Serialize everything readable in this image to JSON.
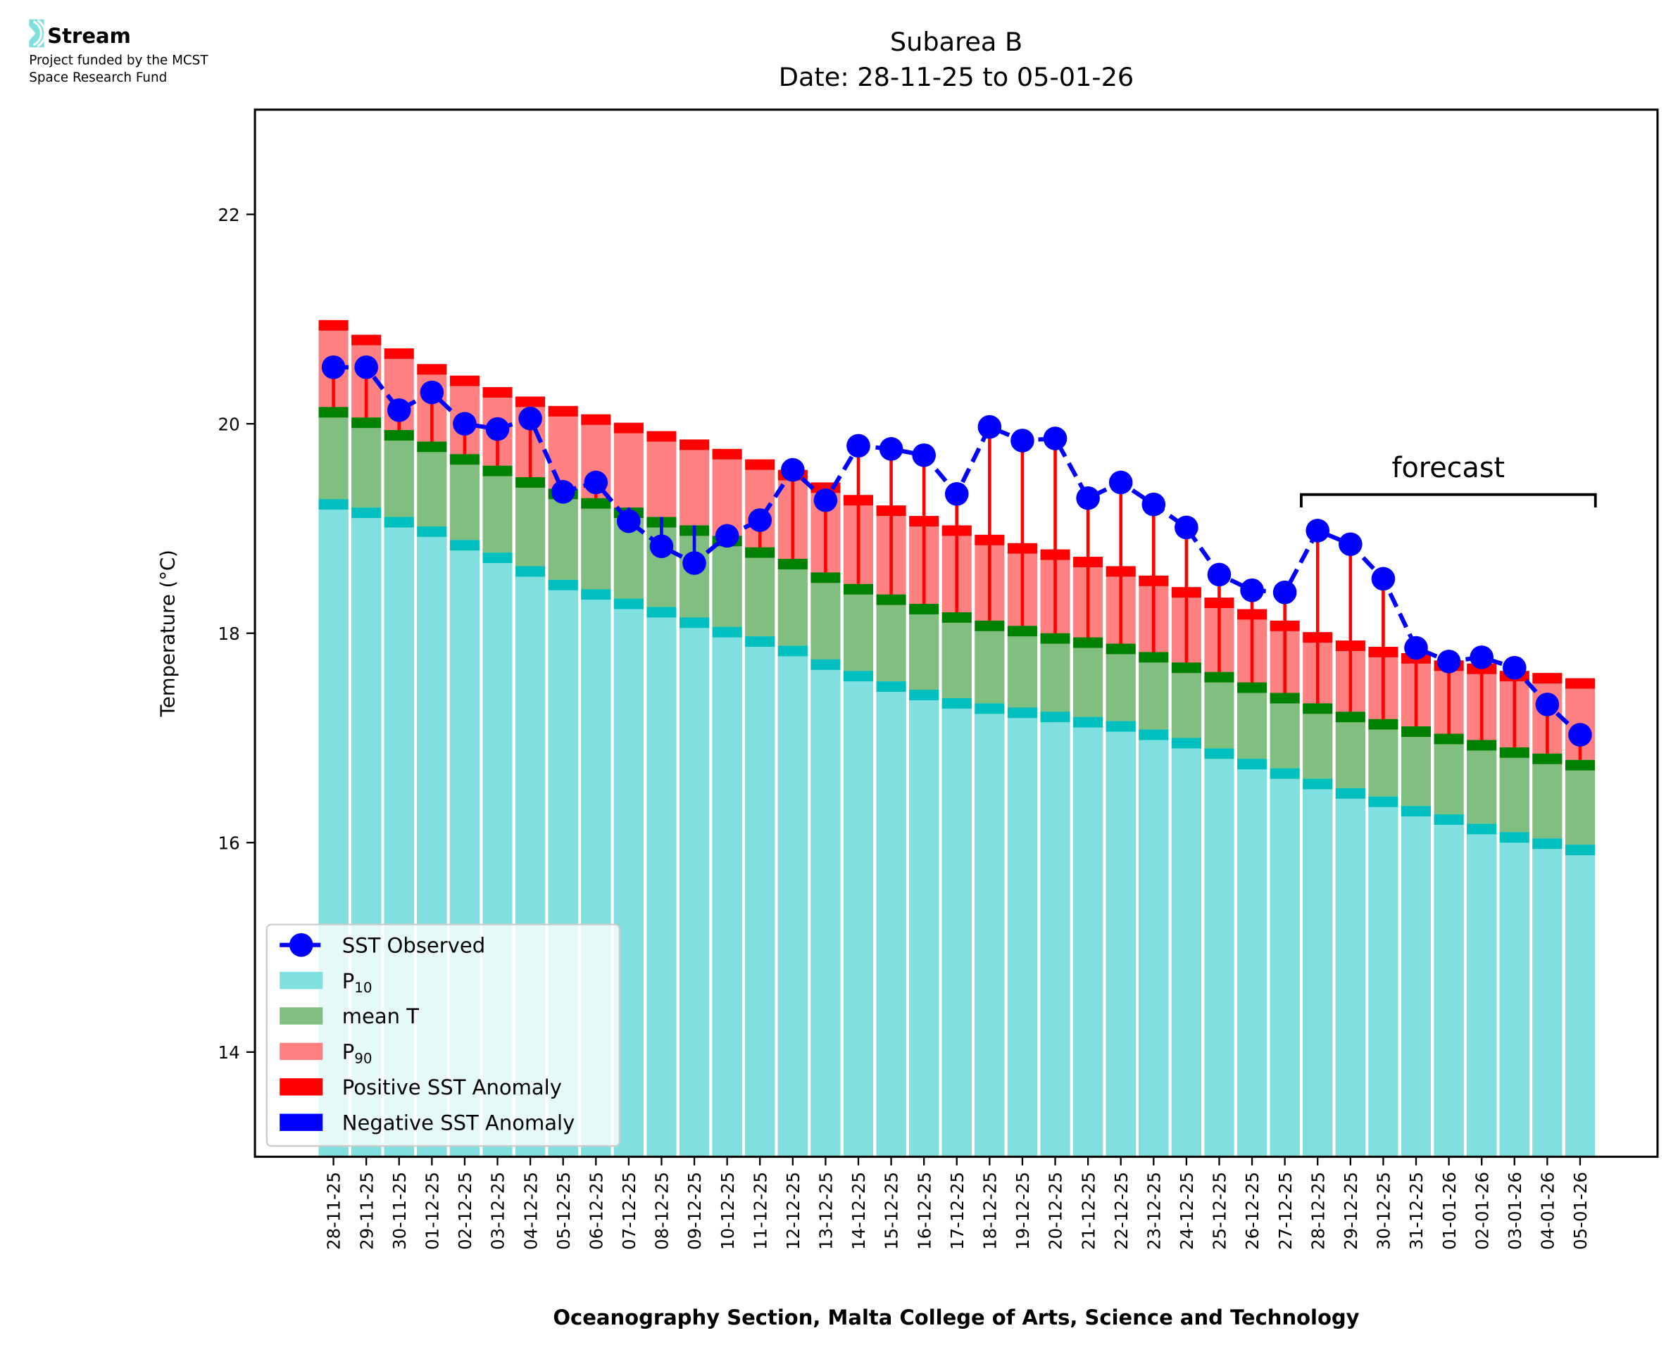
{
  "logo": {
    "name": "Stream",
    "line1": "Project funded by the MCST",
    "line2": "Space Research Fund",
    "color": "#7fdfdf"
  },
  "chart_data": {
    "type": "bar",
    "title": "Subarea B",
    "subtitle": "Date: 28-11-25 to 05-01-26",
    "xlabel": "Oceanography Section, Malta College of Arts, Science and Technology",
    "ylabel": "Temperature (°C)",
    "ylim": [
      13,
      23
    ],
    "yticks": [
      14,
      16,
      18,
      20,
      22
    ],
    "grid": false,
    "legend_position": "lower-left",
    "categories": [
      "28-11-25",
      "29-11-25",
      "30-11-25",
      "01-12-25",
      "02-12-25",
      "03-12-25",
      "04-12-25",
      "05-12-25",
      "06-12-25",
      "07-12-25",
      "08-12-25",
      "09-12-25",
      "10-12-25",
      "11-12-25",
      "12-12-25",
      "13-12-25",
      "14-12-25",
      "15-12-25",
      "16-12-25",
      "17-12-25",
      "18-12-25",
      "19-12-25",
      "20-12-25",
      "21-12-25",
      "22-12-25",
      "23-12-25",
      "24-12-25",
      "25-12-25",
      "26-12-25",
      "27-12-25",
      "28-12-25",
      "29-12-25",
      "30-12-25",
      "31-12-25",
      "01-01-26",
      "02-01-26",
      "03-01-26",
      "04-01-26",
      "05-01-26"
    ],
    "series": [
      {
        "name": "P10",
        "label_base": "P",
        "label_sub": "10",
        "type": "bar",
        "color": "#80dfdf",
        "edge_color": "#00bfbf",
        "values": [
          19.28,
          19.2,
          19.11,
          19.02,
          18.89,
          18.77,
          18.64,
          18.51,
          18.42,
          18.33,
          18.25,
          18.15,
          18.06,
          17.97,
          17.88,
          17.75,
          17.64,
          17.54,
          17.46,
          17.38,
          17.33,
          17.29,
          17.25,
          17.2,
          17.16,
          17.08,
          17.0,
          16.9,
          16.8,
          16.71,
          16.61,
          16.52,
          16.44,
          16.35,
          16.27,
          16.18,
          16.1,
          16.04,
          15.98
        ]
      },
      {
        "name": "mean T",
        "type": "bar",
        "color": "#80bf80",
        "edge_color": "#008000",
        "values": [
          20.16,
          20.06,
          19.94,
          19.83,
          19.71,
          19.6,
          19.49,
          19.38,
          19.29,
          19.2,
          19.11,
          19.03,
          18.93,
          18.82,
          18.71,
          18.58,
          18.47,
          18.37,
          18.28,
          18.2,
          18.12,
          18.07,
          18.0,
          17.96,
          17.9,
          17.82,
          17.72,
          17.63,
          17.53,
          17.43,
          17.33,
          17.25,
          17.18,
          17.11,
          17.04,
          16.98,
          16.91,
          16.85,
          16.79
        ]
      },
      {
        "name": "P90",
        "label_base": "P",
        "label_sub": "90",
        "type": "bar",
        "color": "#ff8080",
        "edge_color": "#ff0000",
        "values": [
          20.99,
          20.85,
          20.72,
          20.57,
          20.46,
          20.35,
          20.26,
          20.17,
          20.09,
          20.01,
          19.93,
          19.85,
          19.76,
          19.66,
          19.56,
          19.44,
          19.32,
          19.22,
          19.12,
          19.03,
          18.94,
          18.86,
          18.8,
          18.73,
          18.64,
          18.55,
          18.44,
          18.34,
          18.23,
          18.12,
          18.01,
          17.93,
          17.87,
          17.81,
          17.74,
          17.71,
          17.64,
          17.62,
          17.57
        ]
      },
      {
        "name": "SST Observed",
        "type": "line",
        "color": "#0000ff",
        "values": [
          20.54,
          20.54,
          20.13,
          20.3,
          20.0,
          19.95,
          20.05,
          19.35,
          19.44,
          19.07,
          18.83,
          18.67,
          18.93,
          19.08,
          19.56,
          19.27,
          19.79,
          19.76,
          19.7,
          19.33,
          19.97,
          19.84,
          19.86,
          19.29,
          19.44,
          19.23,
          19.01,
          18.56,
          18.41,
          18.39,
          18.98,
          18.85,
          18.52,
          17.86,
          17.73,
          17.77,
          17.67,
          17.32,
          17.03
        ]
      }
    ],
    "anomaly_legend": [
      {
        "name": "Positive SST Anomaly",
        "color": "#ff0000"
      },
      {
        "name": "Negative SST Anomaly",
        "color": "#0000ff"
      }
    ],
    "annotation": {
      "text": "forecast",
      "from": "28-12-25",
      "to": "05-01-26"
    }
  }
}
